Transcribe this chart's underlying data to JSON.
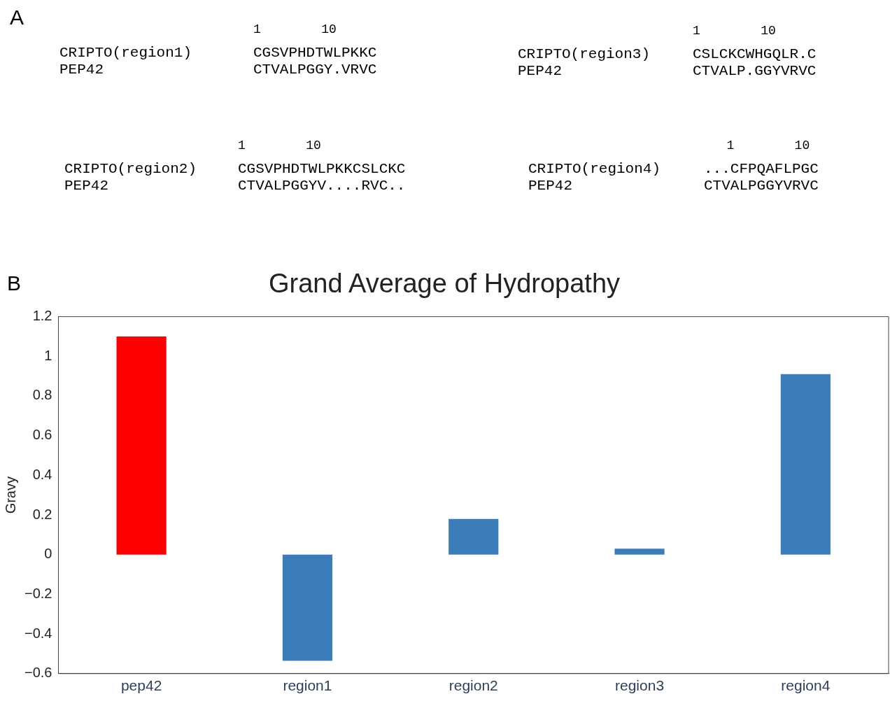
{
  "chart_data": [
    {
      "type": "other",
      "title": "A",
      "annotations": [
        "1        10",
        "CRIPTO(region1)",
        "PEP42",
        "CGSVPHDTWLPKKC",
        "CTVALPGGY.VRVC",
        "1        10",
        "CRIPTO(region3)",
        "PEP42",
        "CSLCKCWHGQLR.C",
        "CTVALP.GGYVRVC",
        "1        10",
        "CRIPTO(region2)",
        "PEP42",
        "CGSVPHDTWLPKKCSLCKC",
        "CTVALPGGYV....RVC..",
        "   1        10",
        "CRIPTO(region4)",
        "PEP42",
        "...CFPQAFLPGC",
        "CTVALPGGYVRVC"
      ]
    },
    {
      "type": "bar",
      "title": "Grand Average of Hydropathy",
      "ylabel": "Gravy",
      "annotations": [
        "B"
      ],
      "categories": [
        "pep42",
        "region1",
        "region2",
        "region3",
        "region4"
      ],
      "values": [
        1.1,
        -0.535,
        0.18,
        0.03,
        0.91
      ],
      "colors": [
        "#ff0000",
        "#3b7dba",
        "#3b7dba",
        "#3b7dba",
        "#3b7dba"
      ],
      "ylim": [
        -0.6,
        1.2
      ],
      "yticks": [
        {
          "value": -0.6,
          "label": "−0.6"
        },
        {
          "value": -0.4,
          "label": "−0.4"
        },
        {
          "value": -0.2,
          "label": "−0.2"
        },
        0,
        0.2,
        0.4,
        0.6,
        0.8,
        1,
        1.2
      ]
    }
  ]
}
